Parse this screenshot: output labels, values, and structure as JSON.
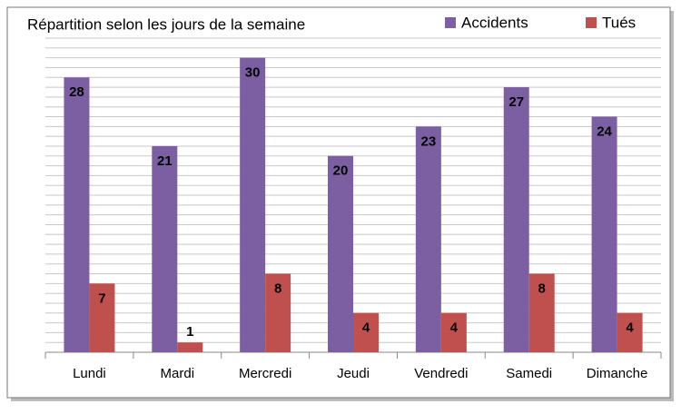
{
  "chart_data": {
    "type": "bar",
    "title": "Répartition selon les jours de la semaine",
    "categories": [
      "Lundi",
      "Mardi",
      "Mercredi",
      "Jeudi",
      "Vendredi",
      "Samedi",
      "Dimanche"
    ],
    "series": [
      {
        "name": "Accidents",
        "color": "#7c5fa3",
        "values": [
          28,
          21,
          30,
          20,
          23,
          27,
          24
        ]
      },
      {
        "name": "Tués",
        "color": "#c0504d",
        "values": [
          7,
          1,
          8,
          4,
          4,
          8,
          4
        ]
      }
    ],
    "ylim": [
      0,
      32
    ],
    "yticks": [
      0,
      1,
      2,
      3,
      4,
      5,
      6,
      7,
      8,
      9,
      10,
      11,
      12,
      13,
      14,
      15,
      16,
      17,
      18,
      19,
      20,
      21,
      22,
      23,
      24,
      25,
      26,
      27,
      28,
      29,
      30,
      31,
      32
    ],
    "ytick_labels": false,
    "grid": true,
    "legend": "top-right"
  }
}
